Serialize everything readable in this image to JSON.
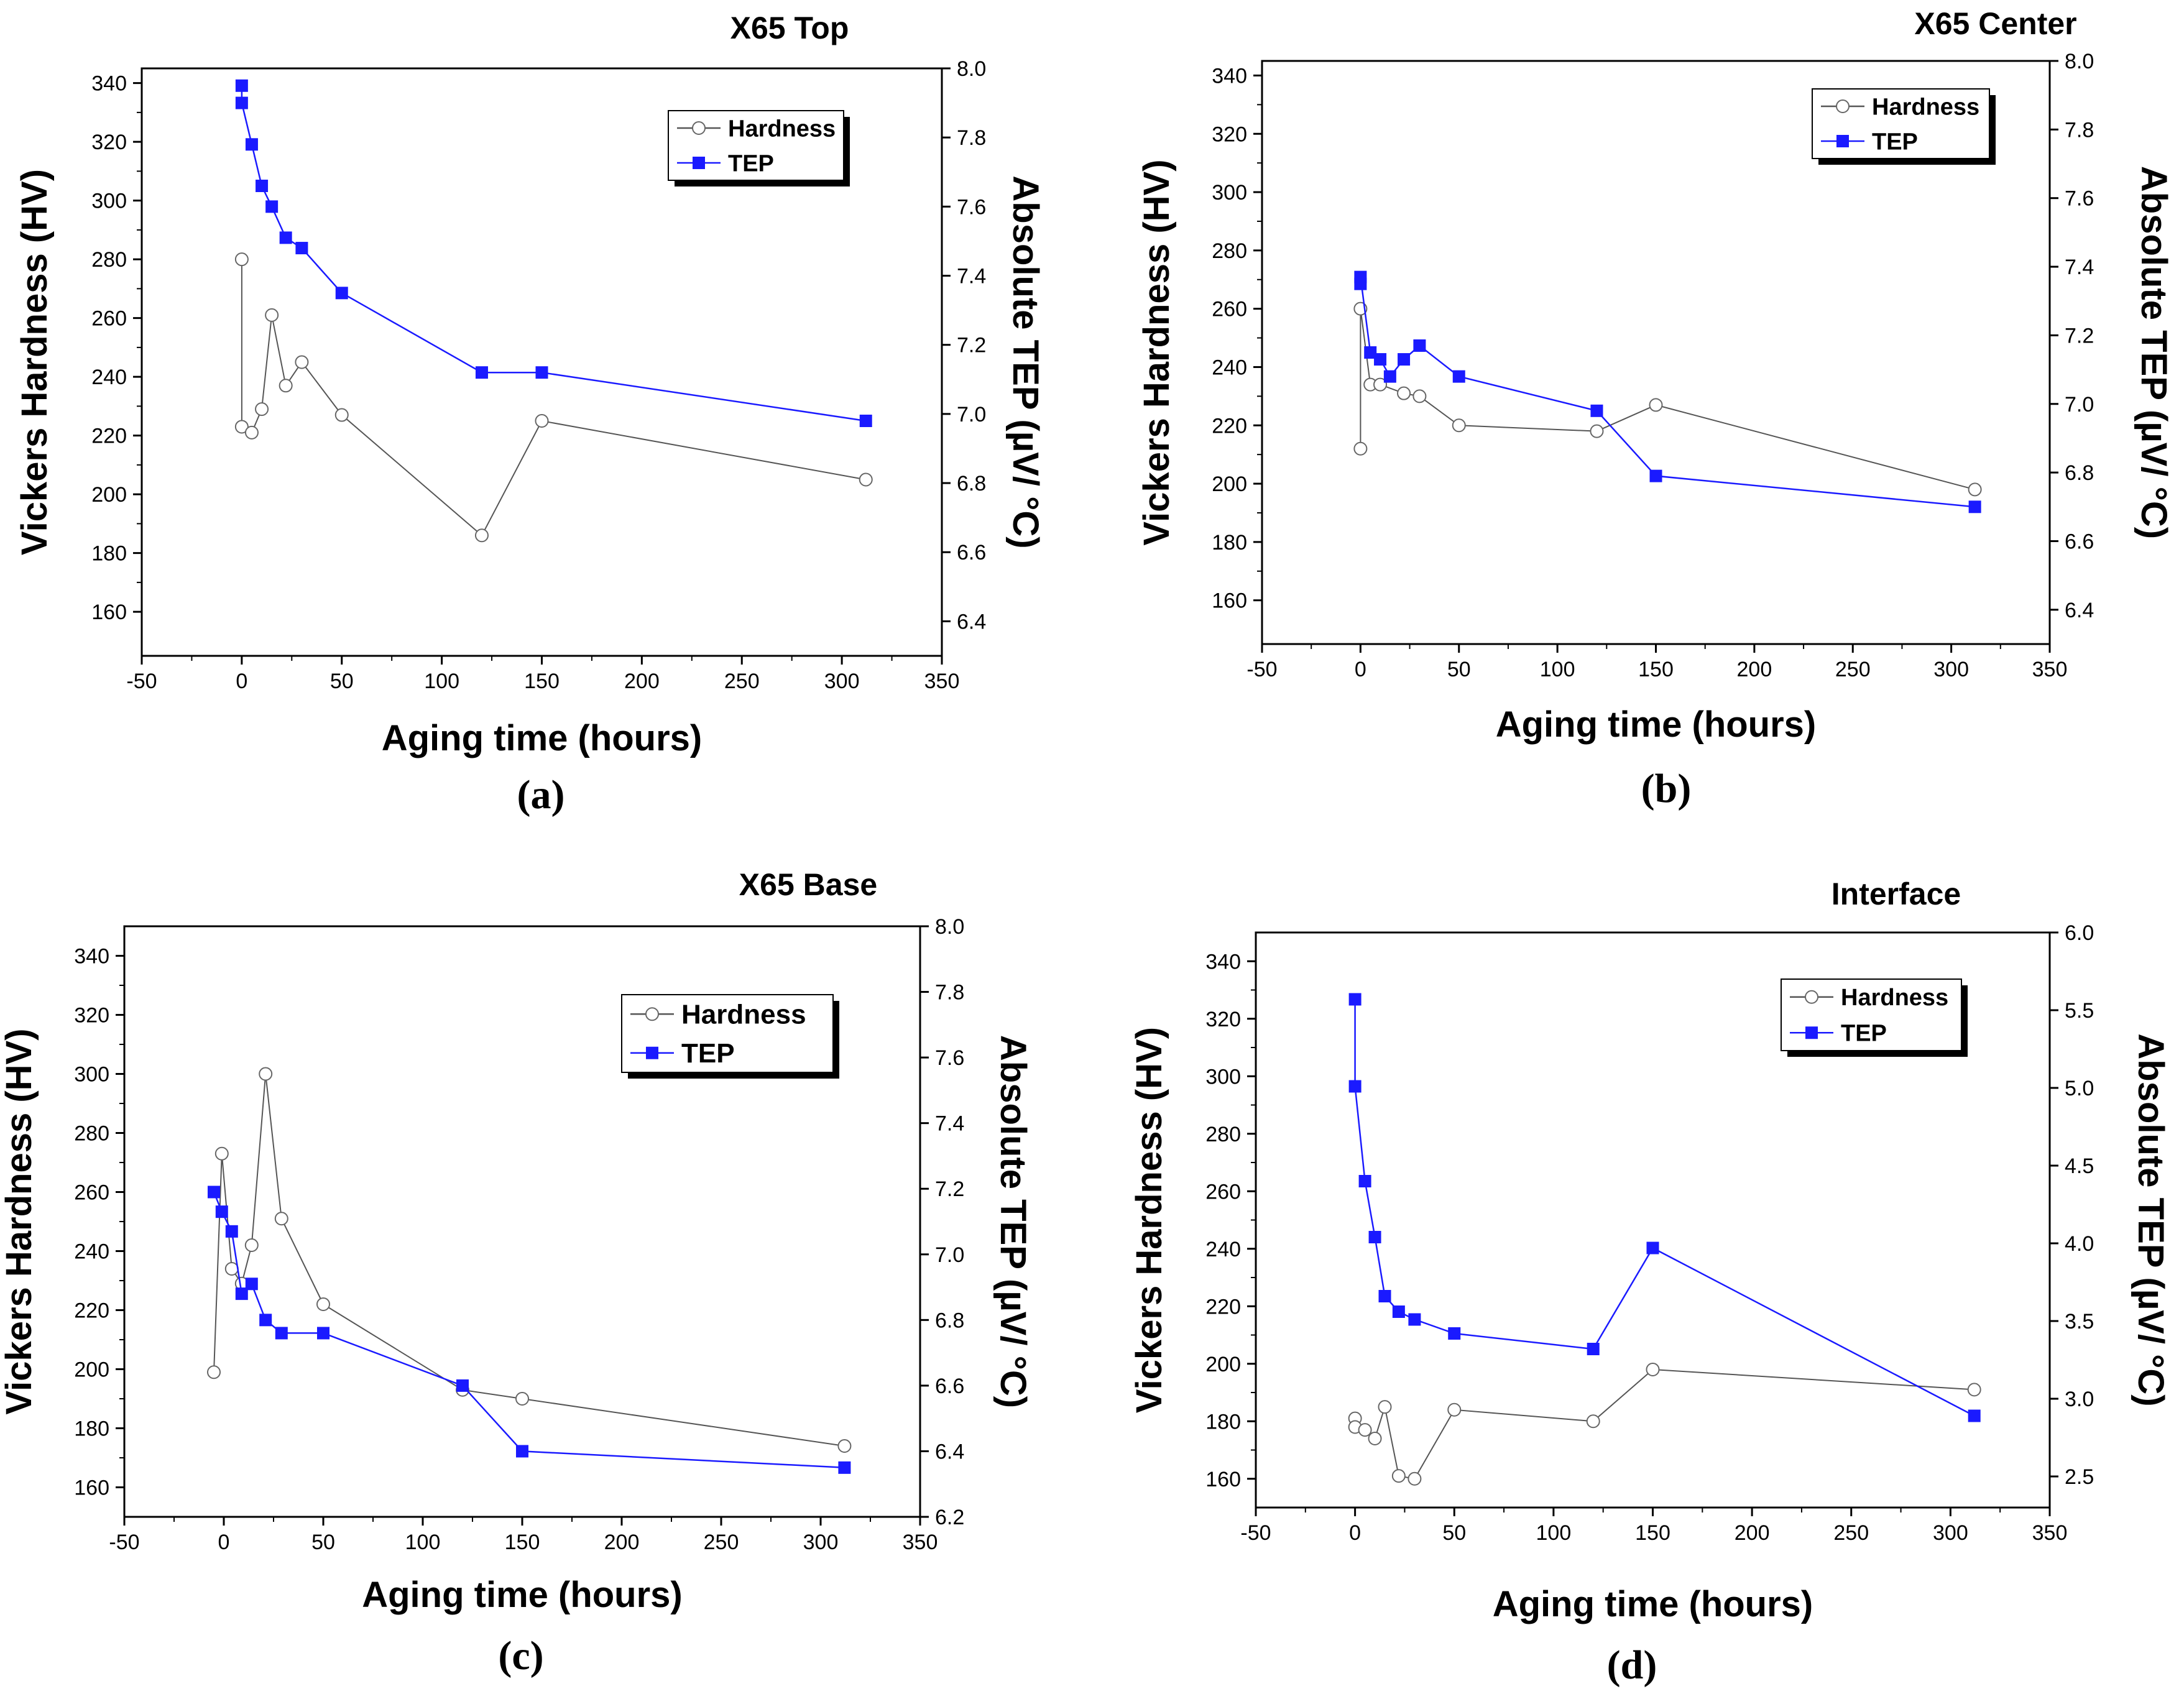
{
  "figure": {
    "colors": {
      "tep": "#1a1aff",
      "hardness": "#555555",
      "axis": "#000000"
    }
  },
  "chart_data": [
    {
      "type": "line",
      "title": "X65 Top",
      "caption": "(a)",
      "xlabel": "Aging time (hours)",
      "ylabel": "Vickers Hardness (HV)",
      "y2label": "Absolute TEP  (µV/ °C)",
      "xlim": [
        -50,
        350
      ],
      "ylim": [
        145,
        345
      ],
      "y2lim": [
        6.3,
        8.0
      ],
      "xticks": [
        -50,
        0,
        50,
        100,
        150,
        200,
        250,
        300,
        350
      ],
      "yticks": [
        160,
        180,
        200,
        220,
        240,
        260,
        280,
        300,
        320,
        340
      ],
      "y2ticks": [
        6.4,
        6.6,
        6.8,
        7.0,
        7.2,
        7.4,
        7.6,
        7.8,
        8.0
      ],
      "y2_decimals": 1,
      "legend_position": "top-right",
      "series": [
        {
          "name": "Hardness",
          "axis": "left",
          "marker": "open-circle",
          "x": [
            0,
            0,
            5,
            10,
            15,
            22,
            30,
            50,
            120,
            150,
            312
          ],
          "y": [
            280,
            223,
            221,
            229,
            261,
            237,
            245,
            227,
            186,
            225,
            205
          ]
        },
        {
          "name": "TEP",
          "axis": "right",
          "marker": "filled-square",
          "x": [
            0,
            0,
            5,
            10,
            15,
            22,
            30,
            50,
            120,
            150,
            312
          ],
          "y": [
            7.95,
            7.9,
            7.78,
            7.66,
            7.6,
            7.51,
            7.48,
            7.35,
            7.12,
            7.12,
            6.98
          ]
        }
      ]
    },
    {
      "type": "line",
      "title": "X65 Center",
      "caption": "(b)",
      "xlabel": "Aging time (hours)",
      "ylabel": "Vickers Hardness (HV)",
      "y2label": "Absolute TEP  (µV/ °C)",
      "xlim": [
        -50,
        350
      ],
      "ylim": [
        145,
        345
      ],
      "y2lim": [
        6.3,
        8.0
      ],
      "xticks": [
        -50,
        0,
        50,
        100,
        150,
        200,
        250,
        300,
        350
      ],
      "yticks": [
        160,
        180,
        200,
        220,
        240,
        260,
        280,
        300,
        320,
        340
      ],
      "y2ticks": [
        6.4,
        6.6,
        6.8,
        7.0,
        7.2,
        7.4,
        7.6,
        7.8,
        8.0
      ],
      "y2_decimals": 1,
      "legend_position": "top-right",
      "series": [
        {
          "name": "Hardness",
          "axis": "left",
          "marker": "open-circle",
          "x": [
            0,
            0,
            5,
            10,
            22,
            30,
            50,
            120,
            150,
            312
          ],
          "y": [
            212,
            260,
            234,
            234,
            231,
            230,
            220,
            218,
            227,
            198
          ]
        },
        {
          "name": "TEP",
          "axis": "right",
          "marker": "filled-square",
          "x": [
            0,
            0,
            5,
            10,
            15,
            22,
            30,
            50,
            120,
            150,
            312
          ],
          "y": [
            7.35,
            7.37,
            7.15,
            7.13,
            7.08,
            7.13,
            7.17,
            7.08,
            6.98,
            6.79,
            6.7
          ]
        }
      ]
    },
    {
      "type": "line",
      "title": "X65 Base",
      "caption": "(c)",
      "xlabel": "Aging time (hours)",
      "ylabel": "Vickers Hardness (HV)",
      "y2label": "Absolute TEP  (µV/ °C)",
      "xlim": [
        -50,
        350
      ],
      "ylim": [
        150,
        350
      ],
      "y2lim": [
        6.2,
        8.0
      ],
      "xticks": [
        -50,
        0,
        50,
        100,
        150,
        200,
        250,
        300,
        350
      ],
      "yticks": [
        160,
        180,
        200,
        220,
        240,
        260,
        280,
        300,
        320,
        340
      ],
      "y2ticks": [
        6.2,
        6.4,
        6.6,
        6.8,
        7.0,
        7.2,
        7.4,
        7.6,
        7.8,
        8.0
      ],
      "y2_decimals": 1,
      "legend_position": "top-right",
      "series": [
        {
          "name": "Hardness",
          "axis": "left",
          "marker": "open-circle",
          "x": [
            -5,
            -1,
            4,
            9,
            14,
            21,
            29,
            50,
            120,
            150,
            312
          ],
          "y": [
            199,
            273,
            234,
            229,
            242,
            300,
            251,
            222,
            193,
            190,
            174
          ]
        },
        {
          "name": "TEP",
          "axis": "right",
          "marker": "filled-square",
          "x": [
            -5,
            -1,
            4,
            9,
            14,
            21,
            29,
            50,
            120,
            150,
            312
          ],
          "y": [
            7.19,
            7.13,
            7.07,
            6.88,
            6.91,
            6.8,
            6.76,
            6.76,
            6.6,
            6.4,
            6.35
          ]
        }
      ]
    },
    {
      "type": "line",
      "title": "Interface",
      "caption": "(d)",
      "xlabel": "Aging time (hours)",
      "ylabel": "Vickers Hardness (HV)",
      "y2label": "Absolute TEP  (µV/ °C)",
      "xlim": [
        -50,
        350
      ],
      "ylim": [
        150,
        350
      ],
      "y2lim": [
        2.3,
        6.0
      ],
      "xticks": [
        -50,
        0,
        50,
        100,
        150,
        200,
        250,
        300,
        350
      ],
      "yticks": [
        160,
        180,
        200,
        220,
        240,
        260,
        280,
        300,
        320,
        340
      ],
      "y2ticks": [
        2.5,
        3.0,
        3.5,
        4.0,
        4.5,
        5.0,
        5.5,
        6.0
      ],
      "y2_decimals": 1,
      "legend_position": "top-right",
      "series": [
        {
          "name": "Hardness",
          "axis": "left",
          "marker": "open-circle",
          "x": [
            0,
            0,
            5,
            10,
            15,
            22,
            30,
            50,
            120,
            150,
            312
          ],
          "y": [
            181,
            178,
            177,
            174,
            185,
            161,
            160,
            184,
            180,
            198,
            191
          ]
        },
        {
          "name": "TEP",
          "axis": "right",
          "marker": "filled-square",
          "x": [
            0,
            0,
            5,
            10,
            15,
            22,
            30,
            50,
            120,
            150,
            312
          ],
          "y": [
            5.57,
            5.01,
            4.4,
            4.04,
            3.66,
            3.56,
            3.51,
            3.42,
            3.32,
            3.97,
            2.89
          ]
        }
      ]
    }
  ]
}
